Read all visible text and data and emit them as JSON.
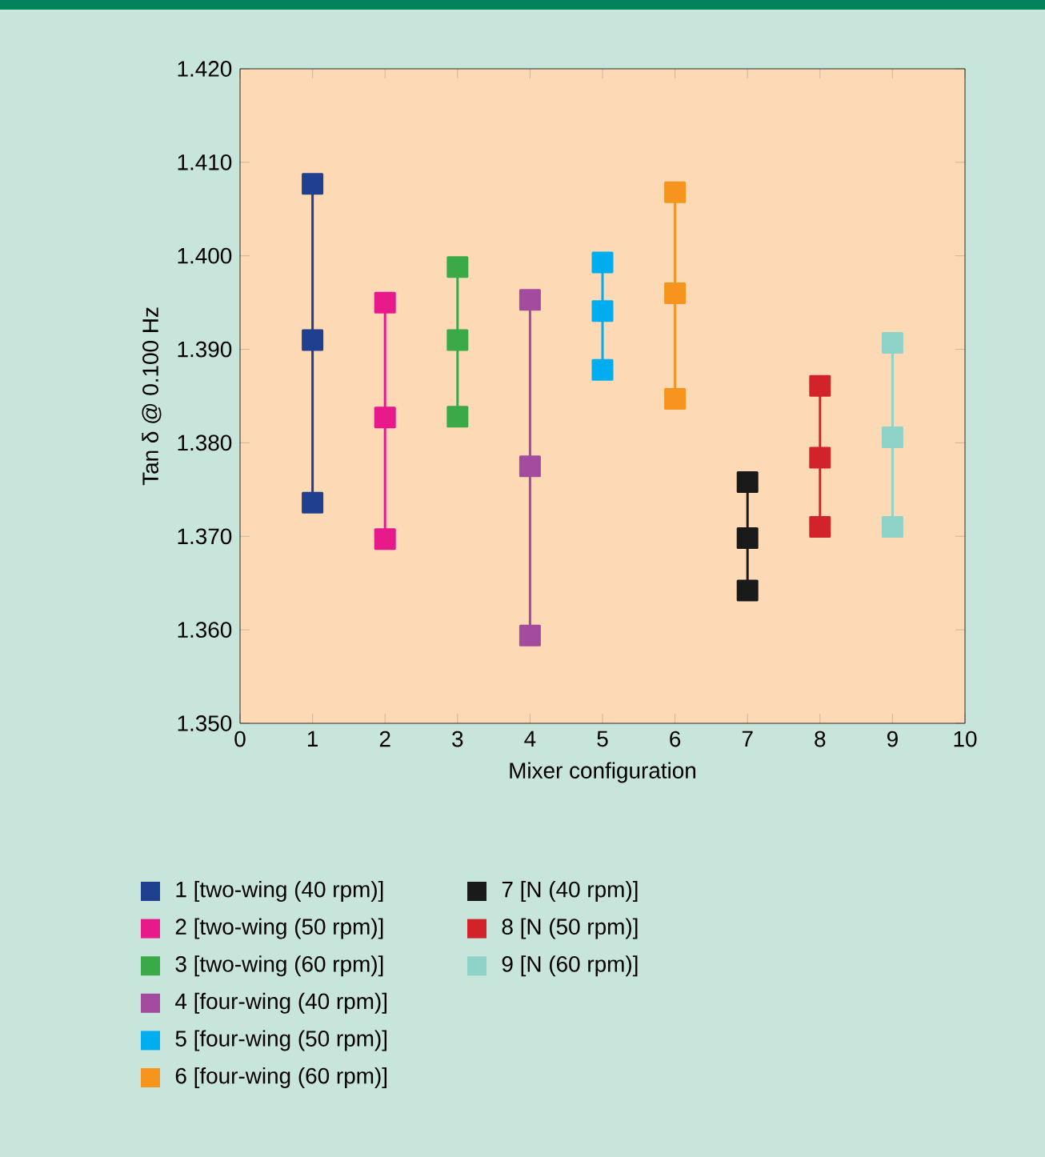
{
  "chart_data": {
    "type": "line",
    "xlabel": "Mixer configuration",
    "ylabel": "Tan δ @ 0.100 Hz",
    "xlim": [
      0,
      10
    ],
    "xticks": [
      0,
      1,
      2,
      3,
      4,
      5,
      6,
      7,
      8,
      9,
      10
    ],
    "ylim": [
      1.35,
      1.42
    ],
    "yticks": [
      {
        "value": 1.35,
        "label": "1.350"
      },
      {
        "value": 1.36,
        "label": "1.360"
      },
      {
        "value": 1.37,
        "label": "1.370"
      },
      {
        "value": 1.38,
        "label": "1.380"
      },
      {
        "value": 1.39,
        "label": "1.390"
      },
      {
        "value": 1.4,
        "label": "1.400"
      },
      {
        "value": 1.41,
        "label": "1.410"
      },
      {
        "value": 1.42,
        "label": "1.420"
      }
    ],
    "marker": "square",
    "legend": "bottom",
    "grid": false,
    "series": [
      {
        "name": "1 [two-wing (40 rpm)]",
        "color": "#1f3f8f",
        "x": [
          1,
          1,
          1
        ],
        "values": [
          1.3736,
          1.391,
          1.4077
        ]
      },
      {
        "name": "2 [two-wing (50 rpm)]",
        "color": "#e8198b",
        "x": [
          2,
          2,
          2
        ],
        "values": [
          1.3697,
          1.3827,
          1.395
        ]
      },
      {
        "name": "3 [two-wing (60 rpm)]",
        "color": "#3aaa48",
        "x": [
          3,
          3,
          3
        ],
        "values": [
          1.3828,
          1.391,
          1.3988
        ]
      },
      {
        "name": "4 [four-wing (40 rpm)]",
        "color": "#a24b9f",
        "x": [
          4,
          4,
          4
        ],
        "values": [
          1.3594,
          1.3775,
          1.3953
        ]
      },
      {
        "name": "5 [four-wing (50 rpm)]",
        "color": "#00aeef",
        "x": [
          5,
          5,
          5
        ],
        "values": [
          1.3878,
          1.3941,
          1.3993
        ]
      },
      {
        "name": "6 [four-wing (60 rpm)]",
        "color": "#f7941d",
        "x": [
          6,
          6,
          6
        ],
        "values": [
          1.3847,
          1.396,
          1.4068
        ]
      },
      {
        "name": "7 [N (40 rpm)]",
        "color": "#1a1a1a",
        "x": [
          7,
          7,
          7
        ],
        "values": [
          1.3642,
          1.3698,
          1.3758
        ]
      },
      {
        "name": "8 [N (50 rpm)]",
        "color": "#d2232a",
        "x": [
          8,
          8,
          8
        ],
        "values": [
          1.371,
          1.3784,
          1.3861
        ]
      },
      {
        "name": "9 [N (60 rpm)]",
        "color": "#8fd3c8",
        "x": [
          9,
          9,
          9
        ],
        "values": [
          1.371,
          1.3806,
          1.3907
        ]
      }
    ]
  }
}
